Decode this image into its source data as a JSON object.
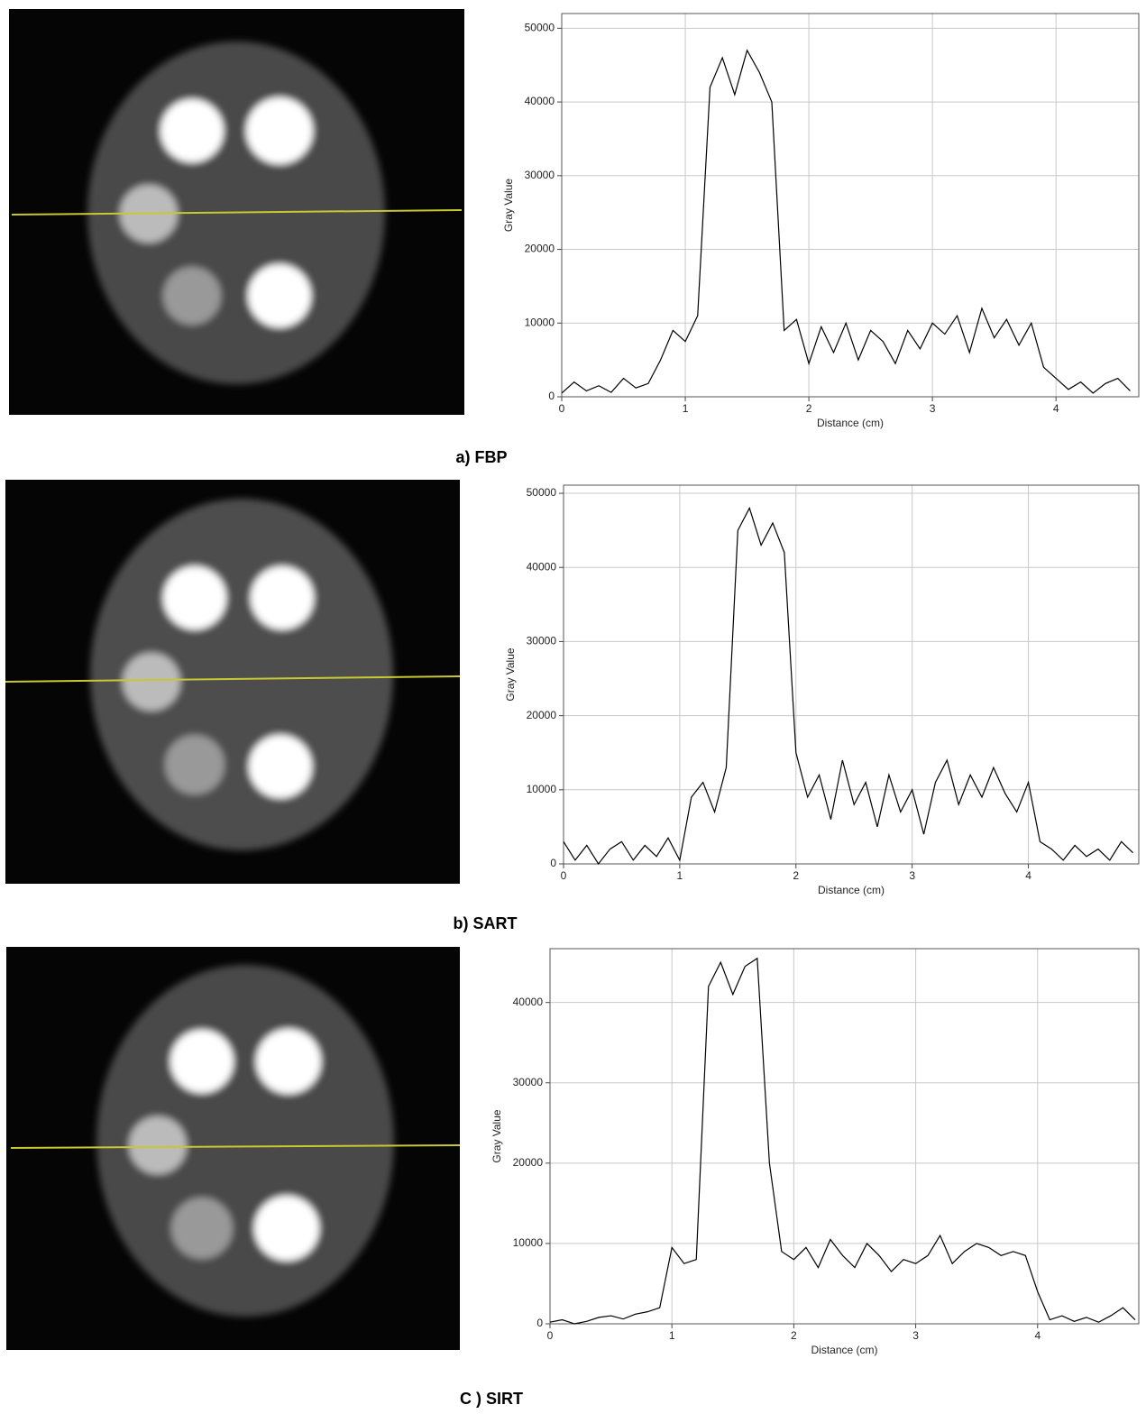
{
  "chart_data": [
    {
      "type": "line",
      "caption": "a) FBP",
      "x_label": "Distance (cm)",
      "y_label": "Gray Value",
      "color": "#000000",
      "grid": true,
      "xlim": [
        0,
        4.67
      ],
      "ylim": [
        0,
        52000
      ],
      "xticks": [
        0,
        1,
        2,
        3,
        4
      ],
      "yticks": [
        0,
        10000,
        20000,
        30000,
        40000,
        50000
      ],
      "x": [
        0,
        0.1,
        0.2,
        0.3,
        0.4,
        0.5,
        0.6,
        0.7,
        0.8,
        0.9,
        1,
        1.1,
        1.2,
        1.3,
        1.4,
        1.5,
        1.6,
        1.7,
        1.8,
        1.9,
        2,
        2.1,
        2.2,
        2.3,
        2.4,
        2.5,
        2.6,
        2.7,
        2.8,
        2.9,
        3,
        3.1,
        3.2,
        3.3,
        3.4,
        3.5,
        3.6,
        3.7,
        3.8,
        3.9,
        4,
        4.1,
        4.2,
        4.3,
        4.4,
        4.5,
        4.6
      ],
      "values": [
        500,
        2000,
        800,
        1500,
        600,
        2500,
        1200,
        1800,
        5000,
        9000,
        7500,
        11000,
        42000,
        46000,
        41000,
        47000,
        44000,
        40000,
        9000,
        10500,
        4500,
        9500,
        6000,
        10000,
        5000,
        9000,
        7500,
        4500,
        9000,
        6500,
        10000,
        8500,
        11000,
        6000,
        12000,
        8000,
        10500,
        7000,
        10000,
        4000,
        2500,
        1000,
        2000,
        500,
        1800,
        2500,
        800
      ]
    },
    {
      "type": "line",
      "caption": "b) SART",
      "x_label": "Distance (cm)",
      "y_label": "Gray Value",
      "color": "#000000",
      "grid": true,
      "xlim": [
        0,
        4.95
      ],
      "ylim": [
        0,
        51100
      ],
      "xticks": [
        0,
        1,
        2,
        3,
        4
      ],
      "yticks": [
        0,
        10000,
        20000,
        30000,
        40000,
        50000
      ],
      "x": [
        0,
        0.1,
        0.2,
        0.3,
        0.4,
        0.5,
        0.6,
        0.7,
        0.8,
        0.9,
        1,
        1.1,
        1.2,
        1.3,
        1.4,
        1.5,
        1.6,
        1.7,
        1.8,
        1.9,
        2,
        2.1,
        2.2,
        2.3,
        2.4,
        2.5,
        2.6,
        2.7,
        2.8,
        2.9,
        3,
        3.1,
        3.2,
        3.3,
        3.4,
        3.5,
        3.6,
        3.7,
        3.8,
        3.9,
        4,
        4.1,
        4.2,
        4.3,
        4.4,
        4.5,
        4.6,
        4.7,
        4.8,
        4.9
      ],
      "values": [
        3000,
        500,
        2500,
        0,
        2000,
        3000,
        500,
        2500,
        1000,
        3500,
        500,
        9000,
        11000,
        7000,
        13000,
        45000,
        48000,
        43000,
        46000,
        42000,
        15000,
        9000,
        12000,
        6000,
        14000,
        8000,
        11000,
        5000,
        12000,
        7000,
        10000,
        4000,
        11000,
        14000,
        8000,
        12000,
        9000,
        13000,
        9500,
        7000,
        11000,
        3000,
        2000,
        500,
        2500,
        1000,
        2000,
        500,
        3000,
        1500
      ]
    },
    {
      "type": "line",
      "caption": "C ) SIRT",
      "x_label": "Distance (cm)",
      "y_label": "Gray Value",
      "color": "#000000",
      "grid": true,
      "xlim": [
        0,
        4.83
      ],
      "ylim": [
        0,
        46700
      ],
      "xticks": [
        0,
        1,
        2,
        3,
        4
      ],
      "yticks": [
        0,
        10000,
        20000,
        30000,
        40000
      ],
      "x": [
        0,
        0.1,
        0.2,
        0.3,
        0.4,
        0.5,
        0.6,
        0.7,
        0.8,
        0.9,
        1,
        1.1,
        1.2,
        1.3,
        1.4,
        1.5,
        1.6,
        1.7,
        1.8,
        1.9,
        2,
        2.1,
        2.2,
        2.3,
        2.4,
        2.5,
        2.6,
        2.7,
        2.8,
        2.9,
        3,
        3.1,
        3.2,
        3.3,
        3.4,
        3.5,
        3.6,
        3.7,
        3.8,
        3.9,
        4,
        4.1,
        4.2,
        4.3,
        4.4,
        4.5,
        4.6,
        4.7,
        4.8
      ],
      "values": [
        200,
        500,
        0,
        300,
        800,
        1000,
        600,
        1200,
        1500,
        2000,
        9500,
        7500,
        8000,
        42000,
        45000,
        41000,
        44500,
        45500,
        20000,
        9000,
        8000,
        9500,
        7000,
        10500,
        8500,
        7000,
        10000,
        8500,
        6500,
        8000,
        7500,
        8500,
        11000,
        7500,
        9000,
        10000,
        9500,
        8500,
        9000,
        8500,
        4000,
        500,
        1000,
        300,
        800,
        200,
        1000,
        2000,
        500
      ]
    }
  ]
}
